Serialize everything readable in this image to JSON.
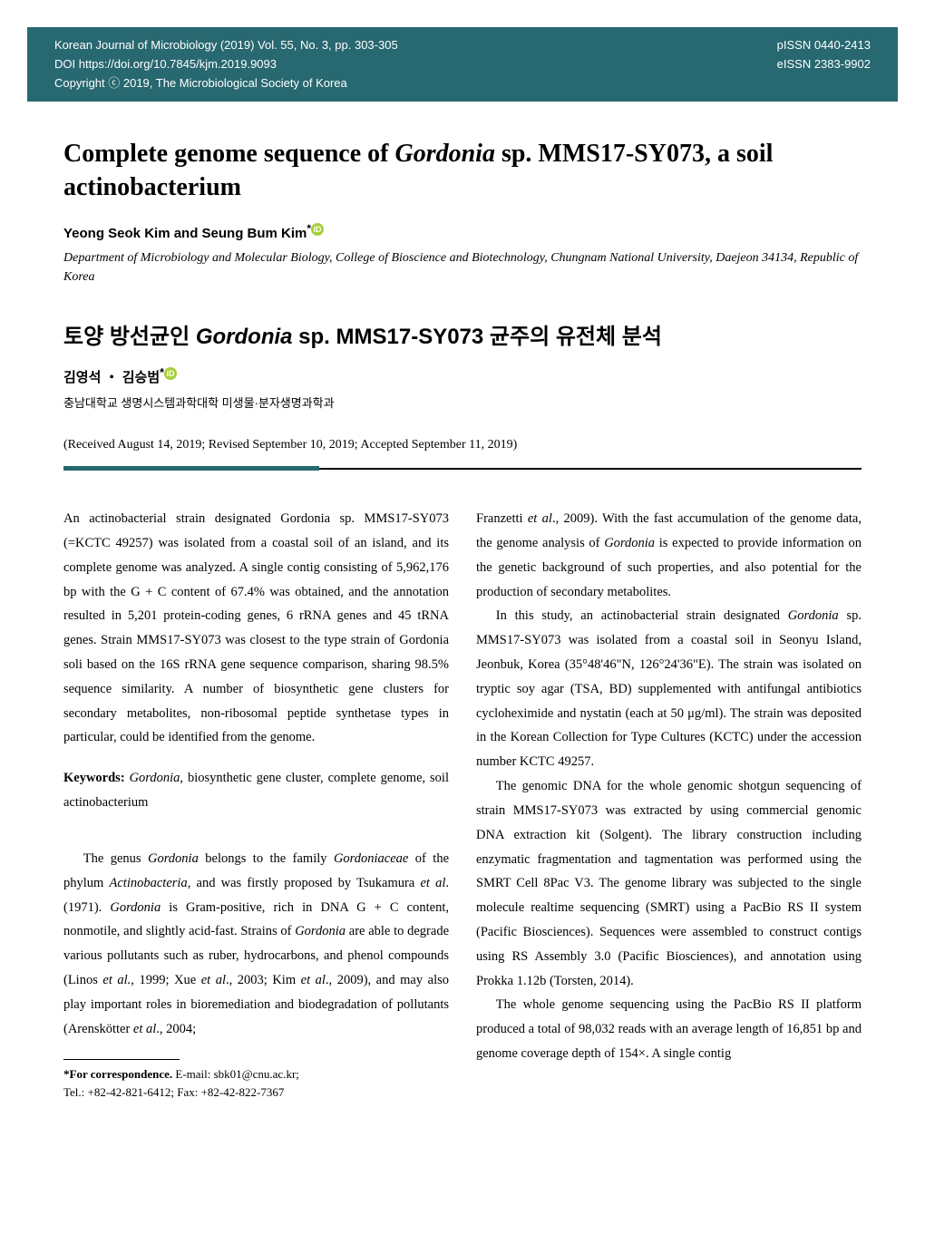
{
  "colors": {
    "header_bg": "#286870",
    "header_text": "#ffffff",
    "body_bg": "#ffffff",
    "text": "#000000",
    "orcid_bg": "#a6ce39",
    "divider_teal": "#286870",
    "divider_black": "#000000"
  },
  "header": {
    "journal_line": "Korean Journal of Microbiology (2019) Vol. 55, No. 3, pp. 303-305",
    "doi_line": "DOI https://doi.org/10.7845/kjm.2019.9093",
    "copyright_line": "Copyright ⓒ 2019, The Microbiological Society of Korea",
    "pissn": "pISSN 0440-2413",
    "eissn": "eISSN 2383-9902"
  },
  "title": {
    "prefix": "Complete genome sequence of ",
    "italic": "Gordonia",
    "suffix": " sp. MMS17-SY073, a soil actinobacterium"
  },
  "authors": "Yeong Seok Kim and Seung Bum Kim",
  "author_mark": "*",
  "orcid_glyph": "iD",
  "affiliation": "Department of Microbiology and Molecular Biology, College of Bioscience and Biotechnology, Chungnam National University, Daejeon 34134, Republic of Korea",
  "korean_title": {
    "prefix": "토양 방선균인 ",
    "italic": "Gordonia",
    "suffix": " sp. MMS17-SY073 균주의 유전체 분석"
  },
  "korean_authors": "김영석 ・ 김승범",
  "korean_affiliation": "충남대학교 생명시스템과학대학 미생물·분자생명과학과",
  "dates": "(Received August 14, 2019; Revised September 10, 2019; Accepted September 11, 2019)",
  "abstract": {
    "p1": "An actinobacterial strain designated ",
    "i1": "Gordonia",
    "p2": " sp. MMS17-SY073 (=KCTC 49257) was isolated from a coastal soil of an island, and its complete genome was analyzed. A single contig consisting of 5,962,176 bp with the G + C content of 67.4% was obtained, and the annotation resulted in 5,201 protein-coding genes, 6 rRNA genes and 45 tRNA genes. Strain MMS17-SY073 was closest to the type strain of ",
    "i2": "Gordonia soli",
    "p3": " based on the 16S rRNA gene sequence comparison, sharing 98.5% sequence similarity. A number of biosynthetic gene clusters for secondary metabolites, non-ribosomal peptide synthetase types in particular, could be identified from the genome."
  },
  "keywords": {
    "label": "Keywords: ",
    "i1": "Gordonia",
    "text": ", biosynthetic gene cluster, complete genome, soil actinobacterium"
  },
  "body": {
    "left_para": {
      "p1": "The genus ",
      "i1": "Gordonia",
      "p2": " belongs to the family ",
      "i2": "Gordoniaceae",
      "p3": " of the phylum ",
      "i3": "Actinobacteria",
      "p4": ", and was firstly proposed by Tsukamura ",
      "i4": "et al",
      "p5": ". (1971). ",
      "i5": "Gordonia",
      "p6": " is Gram-positive, rich in DNA G + C content, nonmotile, and slightly acid-fast. Strains of ",
      "i6": "Gordonia",
      "p7": " are able to degrade various pollutants such as ruber, hydrocarbons, and phenol compounds (Linos ",
      "i7": "et al.",
      "p8": ", 1999; Xue ",
      "i8": "et al",
      "p9": "., 2003; Kim ",
      "i9": "et al",
      "p10": "., 2009), and may also play important roles in bioremediation and biodegradation of pollutants (Arenskötter ",
      "i10": "et al",
      "p11": "., 2004;"
    },
    "right_para1": {
      "p1": "Franzetti ",
      "i1": "et al",
      "p2": "., 2009). With the fast accumulation of the genome data, the genome analysis of ",
      "i2": "Gordonia",
      "p3": " is expected to provide information on the genetic background of such properties, and also potential for the production of secondary metabolites."
    },
    "right_para2": {
      "p1": "In this study, an actinobacterial strain designated ",
      "i1": "Gordonia",
      "p2": " sp. MMS17-SY073 was isolated from a coastal soil in Seonyu Island, Jeonbuk, Korea (35°48'46\"N, 126°24'36\"E). The strain was isolated on tryptic soy agar (TSA, BD) supplemented with antifungal antibiotics cycloheximide and nystatin (each at 50 μg/ml). The strain was deposited in the Korean Collection for Type Cultures (KCTC) under the accession number KCTC 49257."
    },
    "right_para3": "The genomic DNA for the whole genomic shotgun sequencing of strain MMS17-SY073 was extracted by using commercial genomic DNA extraction kit (Solgent). The library construction including enzymatic fragmentation and tagmentation was performed using the SMRT Cell 8Pac V3. The genome library was subjected to the single molecule realtime sequencing (SMRT) using a PacBio RS II system (Pacific Biosciences). Sequences were assembled to construct contigs using RS Assembly 3.0 (Pacific Biosciences), and annotation using Prokka 1.12b (Torsten, 2014).",
    "right_para4": "The whole genome sequencing using the PacBio RS II platform produced a total of 98,032 reads with an average length of 16,851 bp and genome coverage depth of 154×. A single contig"
  },
  "footnote": {
    "label": "*For correspondence.",
    "email": " E-mail: sbk01@cnu.ac.kr;",
    "tel_fax": "Tel.: +82-42-821-6412; Fax: +82-42-822-7367"
  }
}
